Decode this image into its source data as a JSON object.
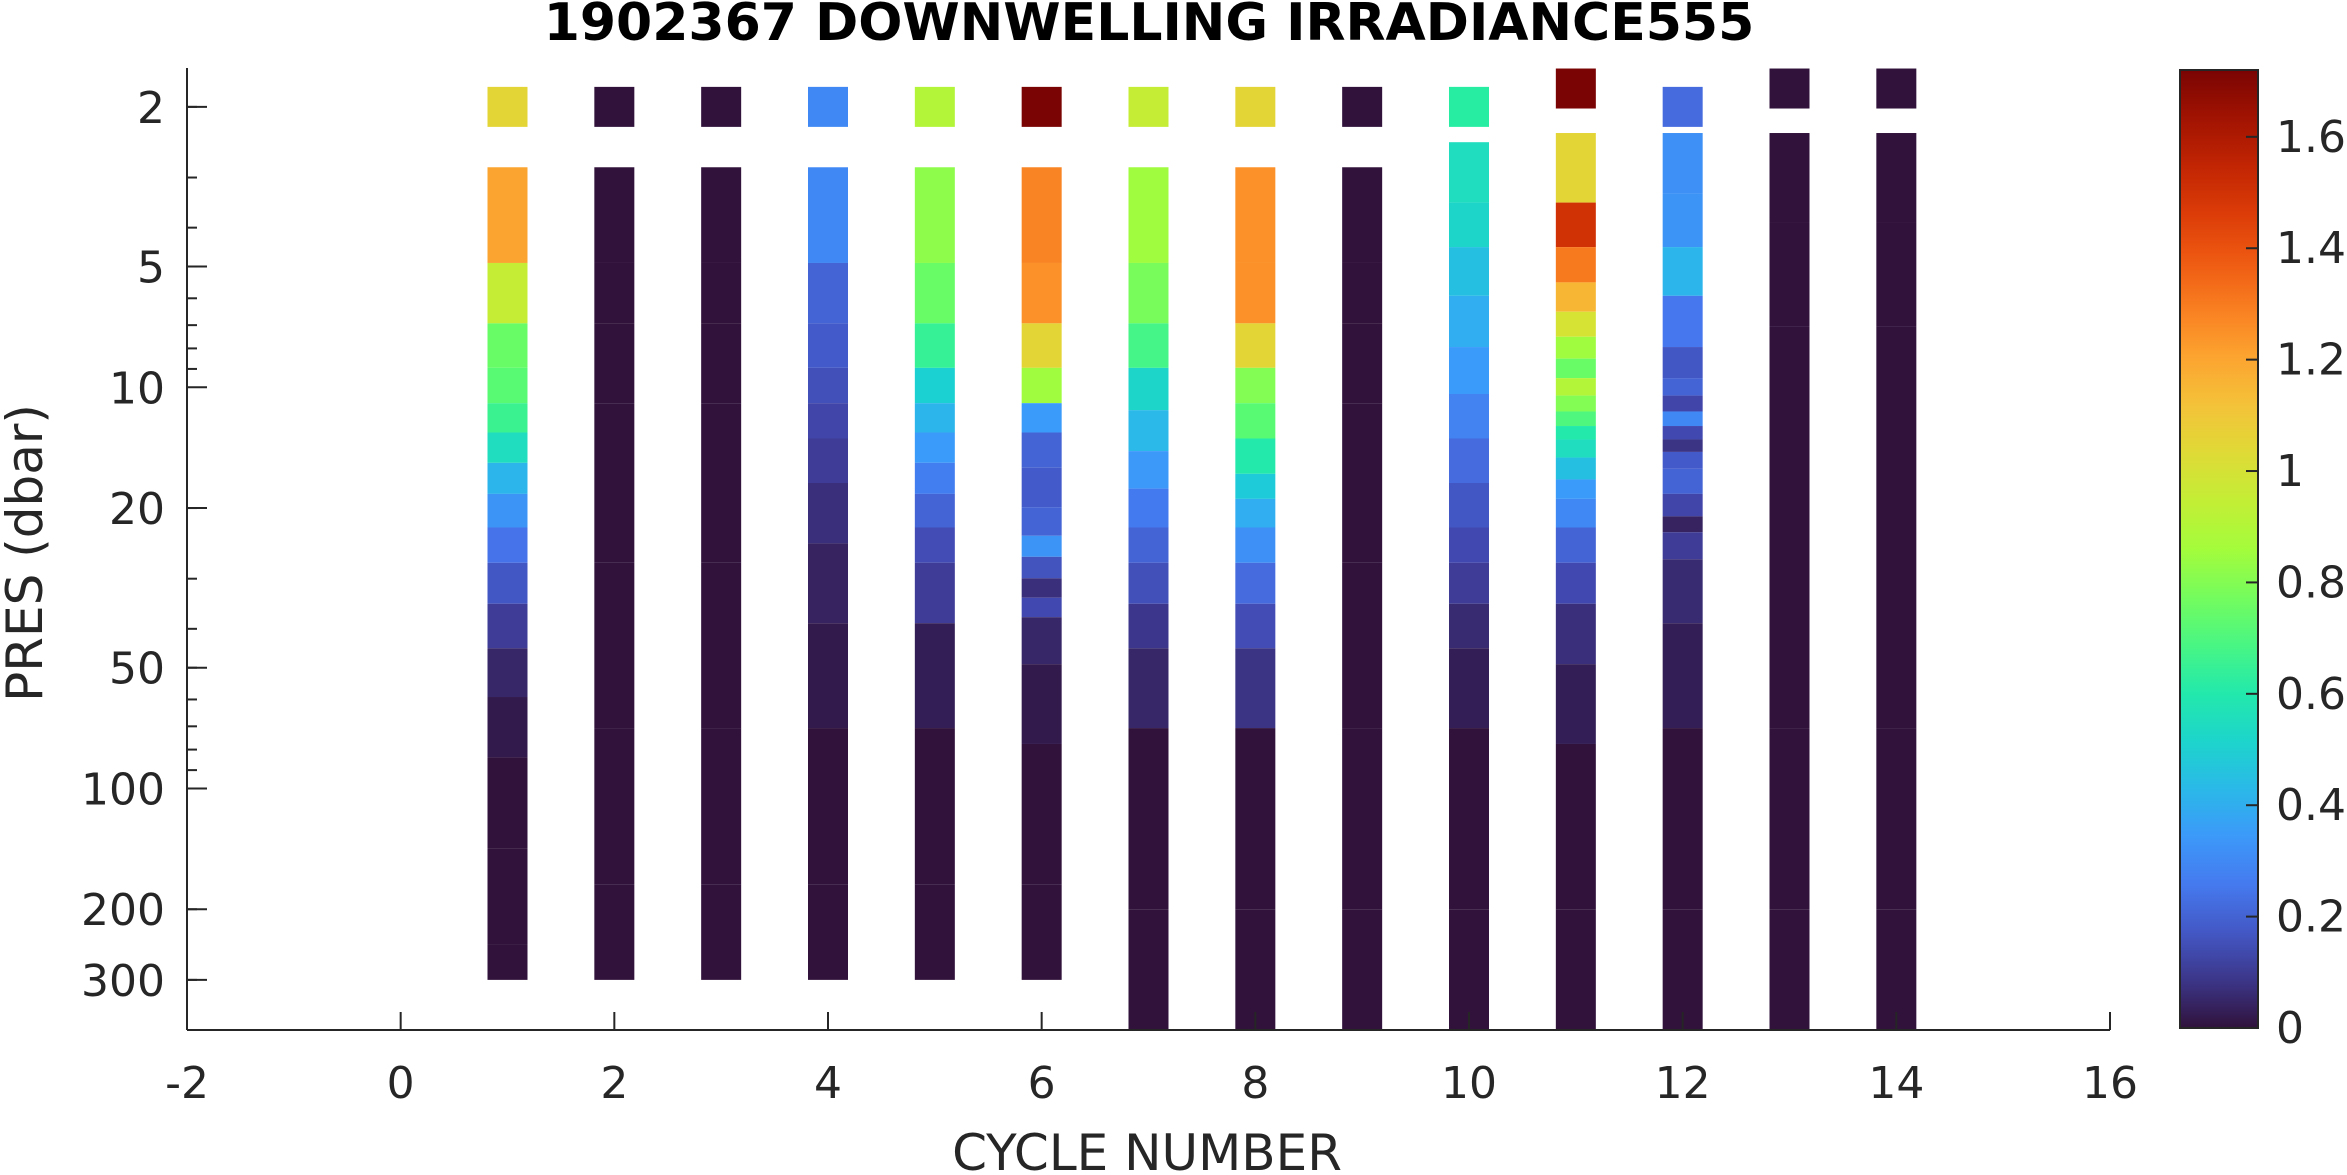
{
  "chart_data": {
    "type": "heatmap",
    "title": "1902367  DOWNWELLING IRRADIANCE555",
    "xlabel": "CYCLE NUMBER",
    "ylabel": "PRES (dbar)",
    "xlim": [
      -2,
      16
    ],
    "ylim": [
      1.6,
      400
    ],
    "yscale": "log",
    "xticks": [
      -2,
      0,
      2,
      4,
      6,
      8,
      10,
      12,
      14,
      16
    ],
    "yticks": [
      2,
      5,
      10,
      20,
      50,
      100,
      200,
      300
    ],
    "colorbar": {
      "colormap": "turbo",
      "limits": [
        0,
        1.72
      ],
      "ticks": [
        0,
        0.2,
        0.4,
        0.6,
        0.8,
        1,
        1.2,
        1.4,
        1.6
      ]
    },
    "profiles": [
      {
        "cycle": 1,
        "max_pres": 300,
        "levels": [
          [
            2.0,
            1.05
          ],
          [
            4.0,
            1.2
          ],
          [
            6.0,
            0.95
          ],
          [
            8.0,
            0.75
          ],
          [
            10.0,
            0.72
          ],
          [
            12.0,
            0.66
          ],
          [
            14.0,
            0.55
          ],
          [
            17.0,
            0.42
          ],
          [
            20.0,
            0.33
          ],
          [
            25.0,
            0.24
          ],
          [
            30.0,
            0.17
          ],
          [
            40.0,
            0.1
          ],
          [
            50.0,
            0.05
          ],
          [
            70.0,
            0.02
          ],
          [
            100.0,
            0.0
          ],
          [
            200.0,
            0.0
          ],
          [
            300.0,
            0.0
          ]
        ]
      },
      {
        "cycle": 2,
        "max_pres": 300,
        "levels": [
          [
            2.0,
            0.0
          ],
          [
            4.0,
            0.0
          ],
          [
            6.0,
            0.0
          ],
          [
            8.0,
            0.0
          ],
          [
            15.0,
            0.0
          ],
          [
            50.0,
            0.0
          ],
          [
            100.0,
            0.0
          ],
          [
            300.0,
            0.0
          ]
        ]
      },
      {
        "cycle": 3,
        "max_pres": 300,
        "levels": [
          [
            2.0,
            0.0
          ],
          [
            4.0,
            0.0
          ],
          [
            6.0,
            0.0
          ],
          [
            8.0,
            0.0
          ],
          [
            15.0,
            0.0
          ],
          [
            50.0,
            0.0
          ],
          [
            100.0,
            0.0
          ],
          [
            300.0,
            0.0
          ]
        ]
      },
      {
        "cycle": 4,
        "max_pres": 300,
        "levels": [
          [
            2.0,
            0.3
          ],
          [
            4.0,
            0.3
          ],
          [
            6.0,
            0.2
          ],
          [
            8.0,
            0.18
          ],
          [
            10.0,
            0.15
          ],
          [
            12.0,
            0.12
          ],
          [
            15.0,
            0.1
          ],
          [
            20.0,
            0.07
          ],
          [
            30.0,
            0.04
          ],
          [
            50.0,
            0.02
          ],
          [
            100.0,
            0.0
          ],
          [
            300.0,
            0.0
          ]
        ]
      },
      {
        "cycle": 5,
        "max_pres": 300,
        "levels": [
          [
            2.0,
            0.9
          ],
          [
            4.0,
            0.82
          ],
          [
            6.0,
            0.75
          ],
          [
            8.0,
            0.65
          ],
          [
            10.0,
            0.5
          ],
          [
            12.0,
            0.42
          ],
          [
            14.0,
            0.35
          ],
          [
            17.0,
            0.27
          ],
          [
            20.0,
            0.2
          ],
          [
            25.0,
            0.14
          ],
          [
            30.0,
            0.1
          ],
          [
            50.0,
            0.03
          ],
          [
            100.0,
            0.0
          ],
          [
            300.0,
            0.0
          ]
        ]
      },
      {
        "cycle": 6,
        "max_pres": 300,
        "levels": [
          [
            2.0,
            1.72
          ],
          [
            4.0,
            1.28
          ],
          [
            6.0,
            1.25
          ],
          [
            8.0,
            1.05
          ],
          [
            10.0,
            0.85
          ],
          [
            12.0,
            0.35
          ],
          [
            14.0,
            0.2
          ],
          [
            18.0,
            0.18
          ],
          [
            22.0,
            0.2
          ],
          [
            25.0,
            0.33
          ],
          [
            28.0,
            0.16
          ],
          [
            32.0,
            0.07
          ],
          [
            35.0,
            0.13
          ],
          [
            40.0,
            0.05
          ],
          [
            60.0,
            0.02
          ],
          [
            100.0,
            0.0
          ],
          [
            300.0,
            0.0
          ]
        ]
      },
      {
        "cycle": 7,
        "max_pres": 400,
        "levels": [
          [
            2.0,
            0.95
          ],
          [
            4.0,
            0.85
          ],
          [
            6.0,
            0.78
          ],
          [
            8.0,
            0.68
          ],
          [
            10.0,
            0.52
          ],
          [
            13.0,
            0.43
          ],
          [
            16.0,
            0.34
          ],
          [
            20.0,
            0.26
          ],
          [
            25.0,
            0.2
          ],
          [
            30.0,
            0.15
          ],
          [
            40.0,
            0.09
          ],
          [
            50.0,
            0.05
          ],
          [
            100.0,
            0.0
          ],
          [
            400.0,
            0.0
          ]
        ]
      },
      {
        "cycle": 8,
        "max_pres": 400,
        "levels": [
          [
            2.0,
            1.05
          ],
          [
            4.0,
            1.25
          ],
          [
            6.0,
            1.25
          ],
          [
            8.0,
            1.05
          ],
          [
            10.0,
            0.8
          ],
          [
            12.0,
            0.72
          ],
          [
            15.0,
            0.6
          ],
          [
            18.0,
            0.48
          ],
          [
            20.0,
            0.4
          ],
          [
            25.0,
            0.32
          ],
          [
            30.0,
            0.22
          ],
          [
            40.0,
            0.14
          ],
          [
            50.0,
            0.08
          ],
          [
            100.0,
            0.0
          ],
          [
            400.0,
            0.0
          ]
        ]
      },
      {
        "cycle": 9,
        "max_pres": 400,
        "levels": [
          [
            2.0,
            0.0
          ],
          [
            4.0,
            0.0
          ],
          [
            6.0,
            0.0
          ],
          [
            8.0,
            0.0
          ],
          [
            15.0,
            0.0
          ],
          [
            50.0,
            0.0
          ],
          [
            100.0,
            0.0
          ],
          [
            400.0,
            0.0
          ]
        ]
      },
      {
        "cycle": 10,
        "max_pres": 400,
        "levels": [
          [
            2.0,
            0.62
          ],
          [
            3.0,
            0.55
          ],
          [
            4.0,
            0.52
          ],
          [
            5.0,
            0.45
          ],
          [
            7.0,
            0.4
          ],
          [
            9.0,
            0.35
          ],
          [
            12.0,
            0.28
          ],
          [
            15.0,
            0.22
          ],
          [
            20.0,
            0.17
          ],
          [
            25.0,
            0.13
          ],
          [
            30.0,
            0.1
          ],
          [
            40.0,
            0.06
          ],
          [
            50.0,
            0.03
          ],
          [
            100.0,
            0.0
          ],
          [
            400.0,
            0.0
          ]
        ]
      },
      {
        "cycle": 11,
        "max_pres": 400,
        "levels": [
          [
            1.8,
            1.72
          ],
          [
            3.0,
            1.05
          ],
          [
            4.0,
            1.5
          ],
          [
            5.0,
            1.3
          ],
          [
            6.0,
            1.15
          ],
          [
            7.0,
            1.0
          ],
          [
            8.0,
            0.85
          ],
          [
            9.0,
            0.75
          ],
          [
            10.0,
            0.9
          ],
          [
            11.0,
            0.8
          ],
          [
            12.0,
            0.7
          ],
          [
            13.0,
            0.6
          ],
          [
            14.0,
            0.55
          ],
          [
            16.0,
            0.45
          ],
          [
            18.0,
            0.35
          ],
          [
            20.0,
            0.3
          ],
          [
            25.0,
            0.2
          ],
          [
            30.0,
            0.13
          ],
          [
            40.0,
            0.07
          ],
          [
            60.0,
            0.03
          ],
          [
            100.0,
            0.0
          ],
          [
            400.0,
            0.0
          ]
        ]
      },
      {
        "cycle": 12,
        "max_pres": 400,
        "levels": [
          [
            2.0,
            0.22
          ],
          [
            2.7,
            0.32
          ],
          [
            4.0,
            0.33
          ],
          [
            5.0,
            0.42
          ],
          [
            7.0,
            0.25
          ],
          [
            9.0,
            0.17
          ],
          [
            10.0,
            0.2
          ],
          [
            11.0,
            0.12
          ],
          [
            12.0,
            0.3
          ],
          [
            13.0,
            0.13
          ],
          [
            14.0,
            0.08
          ],
          [
            15.0,
            0.18
          ],
          [
            17.0,
            0.2
          ],
          [
            20.0,
            0.12
          ],
          [
            22.0,
            0.04
          ],
          [
            24.0,
            0.1
          ],
          [
            30.0,
            0.06
          ],
          [
            50.0,
            0.03
          ],
          [
            100.0,
            0.0
          ],
          [
            400.0,
            0.0
          ]
        ]
      },
      {
        "cycle": 13,
        "max_pres": 400,
        "levels": [
          [
            1.8,
            0.0
          ],
          [
            3.0,
            0.0
          ],
          [
            5.0,
            0.0
          ],
          [
            10.0,
            0.0
          ],
          [
            50.0,
            0.0
          ],
          [
            100.0,
            0.0
          ],
          [
            400.0,
            0.0
          ]
        ]
      },
      {
        "cycle": 14,
        "max_pres": 400,
        "levels": [
          [
            1.8,
            0.0
          ],
          [
            3.0,
            0.0
          ],
          [
            5.0,
            0.0
          ],
          [
            10.0,
            0.0
          ],
          [
            50.0,
            0.0
          ],
          [
            100.0,
            0.0
          ],
          [
            400.0,
            0.0
          ]
        ]
      }
    ]
  }
}
